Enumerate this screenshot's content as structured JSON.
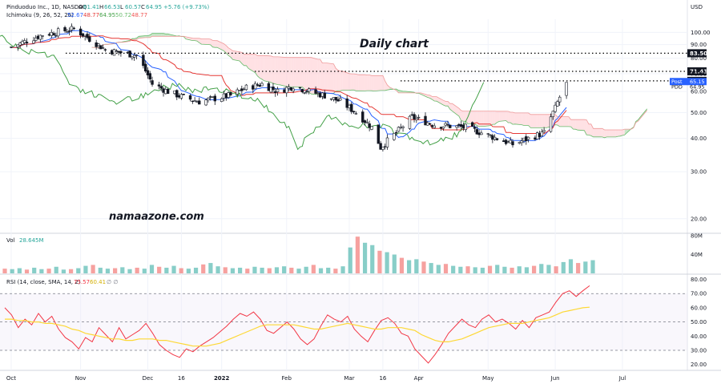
{
  "header": {
    "symbol_line": "Pinduoduo Inc., 1D, NASDAQ",
    "ohlc": [
      {
        "label": "O",
        "value": "61.41"
      },
      {
        "label": "H",
        "value": "66.53"
      },
      {
        "label": "L",
        "value": "60.57"
      },
      {
        "label": "C",
        "value": "64.95"
      }
    ],
    "change": "+5.76 (+9.73%)",
    "ichimoku_label": "Ichimoku (9, 26, 52, 26)",
    "ichimoku_values": [
      "52.67",
      "48.77",
      "64.95",
      "50.72",
      "48.77"
    ],
    "currency": "USD"
  },
  "annotations": {
    "title": "Daily chart",
    "watermark": "namaazone.com"
  },
  "colors": {
    "up": "#26a69a",
    "down": "#ef5350",
    "candle_body": "#131722",
    "conversion": "#2962ff",
    "base": "#e53935",
    "lagging": "#43a047",
    "cloud_up": "#a5d6a7",
    "cloud_down": "#ffcdd2",
    "rsi": "#f23645",
    "rsi_ma": "#fdd835",
    "level_line": "#000000"
  },
  "chart_data": [
    {
      "type": "candlestick",
      "title": "",
      "series_names": [
        "Pinduoduo Inc., 1D, NASDAQ",
        "Ichimoku (9, 26, 52, 26)"
      ],
      "y_scale": "log",
      "ylim": [
        18,
        112
      ],
      "y_ticks": [
        20,
        30,
        40,
        50,
        60,
        70,
        80,
        90,
        100
      ],
      "x_ticks": [
        "Oct",
        "Nov",
        "Dec",
        "16",
        "2022",
        "Feb",
        "Mar",
        "16",
        "Apr",
        "May",
        "Jun",
        "Jul"
      ],
      "x_ticks_dates": [
        "2021-10-01",
        "2021-11-01",
        "2021-12-01",
        "2021-12-16",
        "2022-01-03",
        "2022-02-01",
        "2022-03-01",
        "2022-03-16",
        "2022-04-01",
        "2022-05-02",
        "2022-06-01",
        "2022-07-01"
      ],
      "candles": {
        "dates": [
          "2021-10-01",
          "2021-10-15",
          "2021-10-29",
          "2021-11-12",
          "2021-11-26",
          "2021-12-03",
          "2021-12-10",
          "2021-12-17",
          "2021-12-24",
          "2022-01-07",
          "2022-01-14",
          "2022-01-21",
          "2022-01-28",
          "2022-02-04",
          "2022-02-11",
          "2022-02-18",
          "2022-02-25",
          "2022-03-04",
          "2022-03-11",
          "2022-03-15",
          "2022-03-22",
          "2022-03-29",
          "2022-04-08",
          "2022-04-22",
          "2022-05-06",
          "2022-05-13",
          "2022-05-20",
          "2022-05-27",
          "2022-06-01",
          "2022-06-06"
        ],
        "close": [
          88,
          98,
          103,
          86,
          82,
          64,
          60,
          57,
          55,
          58,
          62,
          64,
          60,
          63,
          60,
          58,
          55,
          50,
          44,
          37,
          42,
          48,
          45,
          44,
          40,
          38,
          40,
          42,
          52,
          64.95
        ]
      },
      "price_levels": [
        {
          "label": "83.50",
          "value": 83.5,
          "style": "dotted"
        },
        {
          "label": "71.41",
          "value": 71.41,
          "style": "dotted"
        },
        {
          "label": "65.78",
          "value": 65.78,
          "style": "dotted"
        }
      ],
      "price_tags": [
        {
          "label": "Post",
          "value": "65.15"
        },
        {
          "label": "PDD",
          "value": "64.95"
        }
      ]
    },
    {
      "type": "bar",
      "title": "Vol",
      "value_label": "28.645M",
      "ylim": [
        0,
        80
      ],
      "y_ticks": [
        "40M",
        "80M"
      ],
      "unit": "M",
      "values": [
        10,
        9,
        11,
        8,
        12,
        9,
        10,
        14,
        8,
        9,
        11,
        16,
        18,
        12,
        10,
        11,
        13,
        9,
        12,
        10,
        18,
        14,
        12,
        16,
        11,
        10,
        12,
        19,
        22,
        15,
        13,
        11,
        12,
        10,
        14,
        12,
        11,
        13,
        15,
        12,
        10,
        14,
        18,
        11,
        12,
        10,
        15,
        55,
        78,
        65,
        60,
        48,
        45,
        40,
        33,
        28,
        30,
        25,
        22,
        18,
        20,
        16,
        14,
        15,
        13,
        12,
        16,
        18,
        14,
        12,
        15,
        13,
        16,
        20,
        18,
        15,
        24,
        30,
        22,
        25,
        28
      ]
    },
    {
      "type": "line",
      "title": "RSI (14, close, SMA, 14, 2)",
      "value_label": "75.57",
      "ma_value_label": "60.41",
      "ylim": [
        17,
        82
      ],
      "y_ticks": [
        20,
        30,
        40,
        50,
        60,
        70,
        80
      ],
      "levels": [
        70,
        50,
        30
      ],
      "series": [
        {
          "name": "RSI",
          "values": [
            60,
            55,
            46,
            52,
            48,
            56,
            50,
            54,
            45,
            39,
            36,
            31,
            39,
            36,
            46,
            41,
            36,
            46,
            38,
            41,
            44,
            49,
            42,
            34,
            30,
            27,
            25,
            31,
            29,
            33,
            36,
            39,
            43,
            47,
            52,
            56,
            54,
            57,
            52,
            44,
            42,
            46,
            50,
            45,
            38,
            34,
            38,
            47,
            55,
            52,
            50,
            54,
            45,
            40,
            36,
            44,
            51,
            53,
            49,
            42,
            40,
            31,
            26,
            21,
            27,
            34,
            42,
            47,
            52,
            48,
            46,
            52,
            55,
            50,
            52,
            49,
            45,
            51,
            46,
            53,
            55,
            57,
            64,
            70,
            72,
            68,
            72,
            75.57
          ]
        },
        {
          "name": "RSI MA",
          "values": [
            52,
            52,
            51,
            51,
            50,
            50,
            49,
            49,
            48,
            47,
            45,
            44,
            42,
            41,
            40,
            39,
            38,
            38,
            37,
            37,
            38,
            38,
            38,
            37,
            37,
            36,
            35,
            34,
            33,
            33,
            33,
            34,
            35,
            37,
            39,
            41,
            43,
            45,
            47,
            48,
            48,
            48,
            48,
            48,
            47,
            46,
            45,
            45,
            46,
            47,
            48,
            49,
            48,
            47,
            46,
            45,
            45,
            46,
            46,
            46,
            45,
            44,
            41,
            39,
            37,
            36,
            36,
            37,
            38,
            40,
            42,
            44,
            46,
            47,
            48,
            49,
            49,
            49,
            50,
            51,
            52,
            53,
            55,
            57,
            58,
            59,
            60,
            60.41
          ]
        }
      ]
    }
  ]
}
